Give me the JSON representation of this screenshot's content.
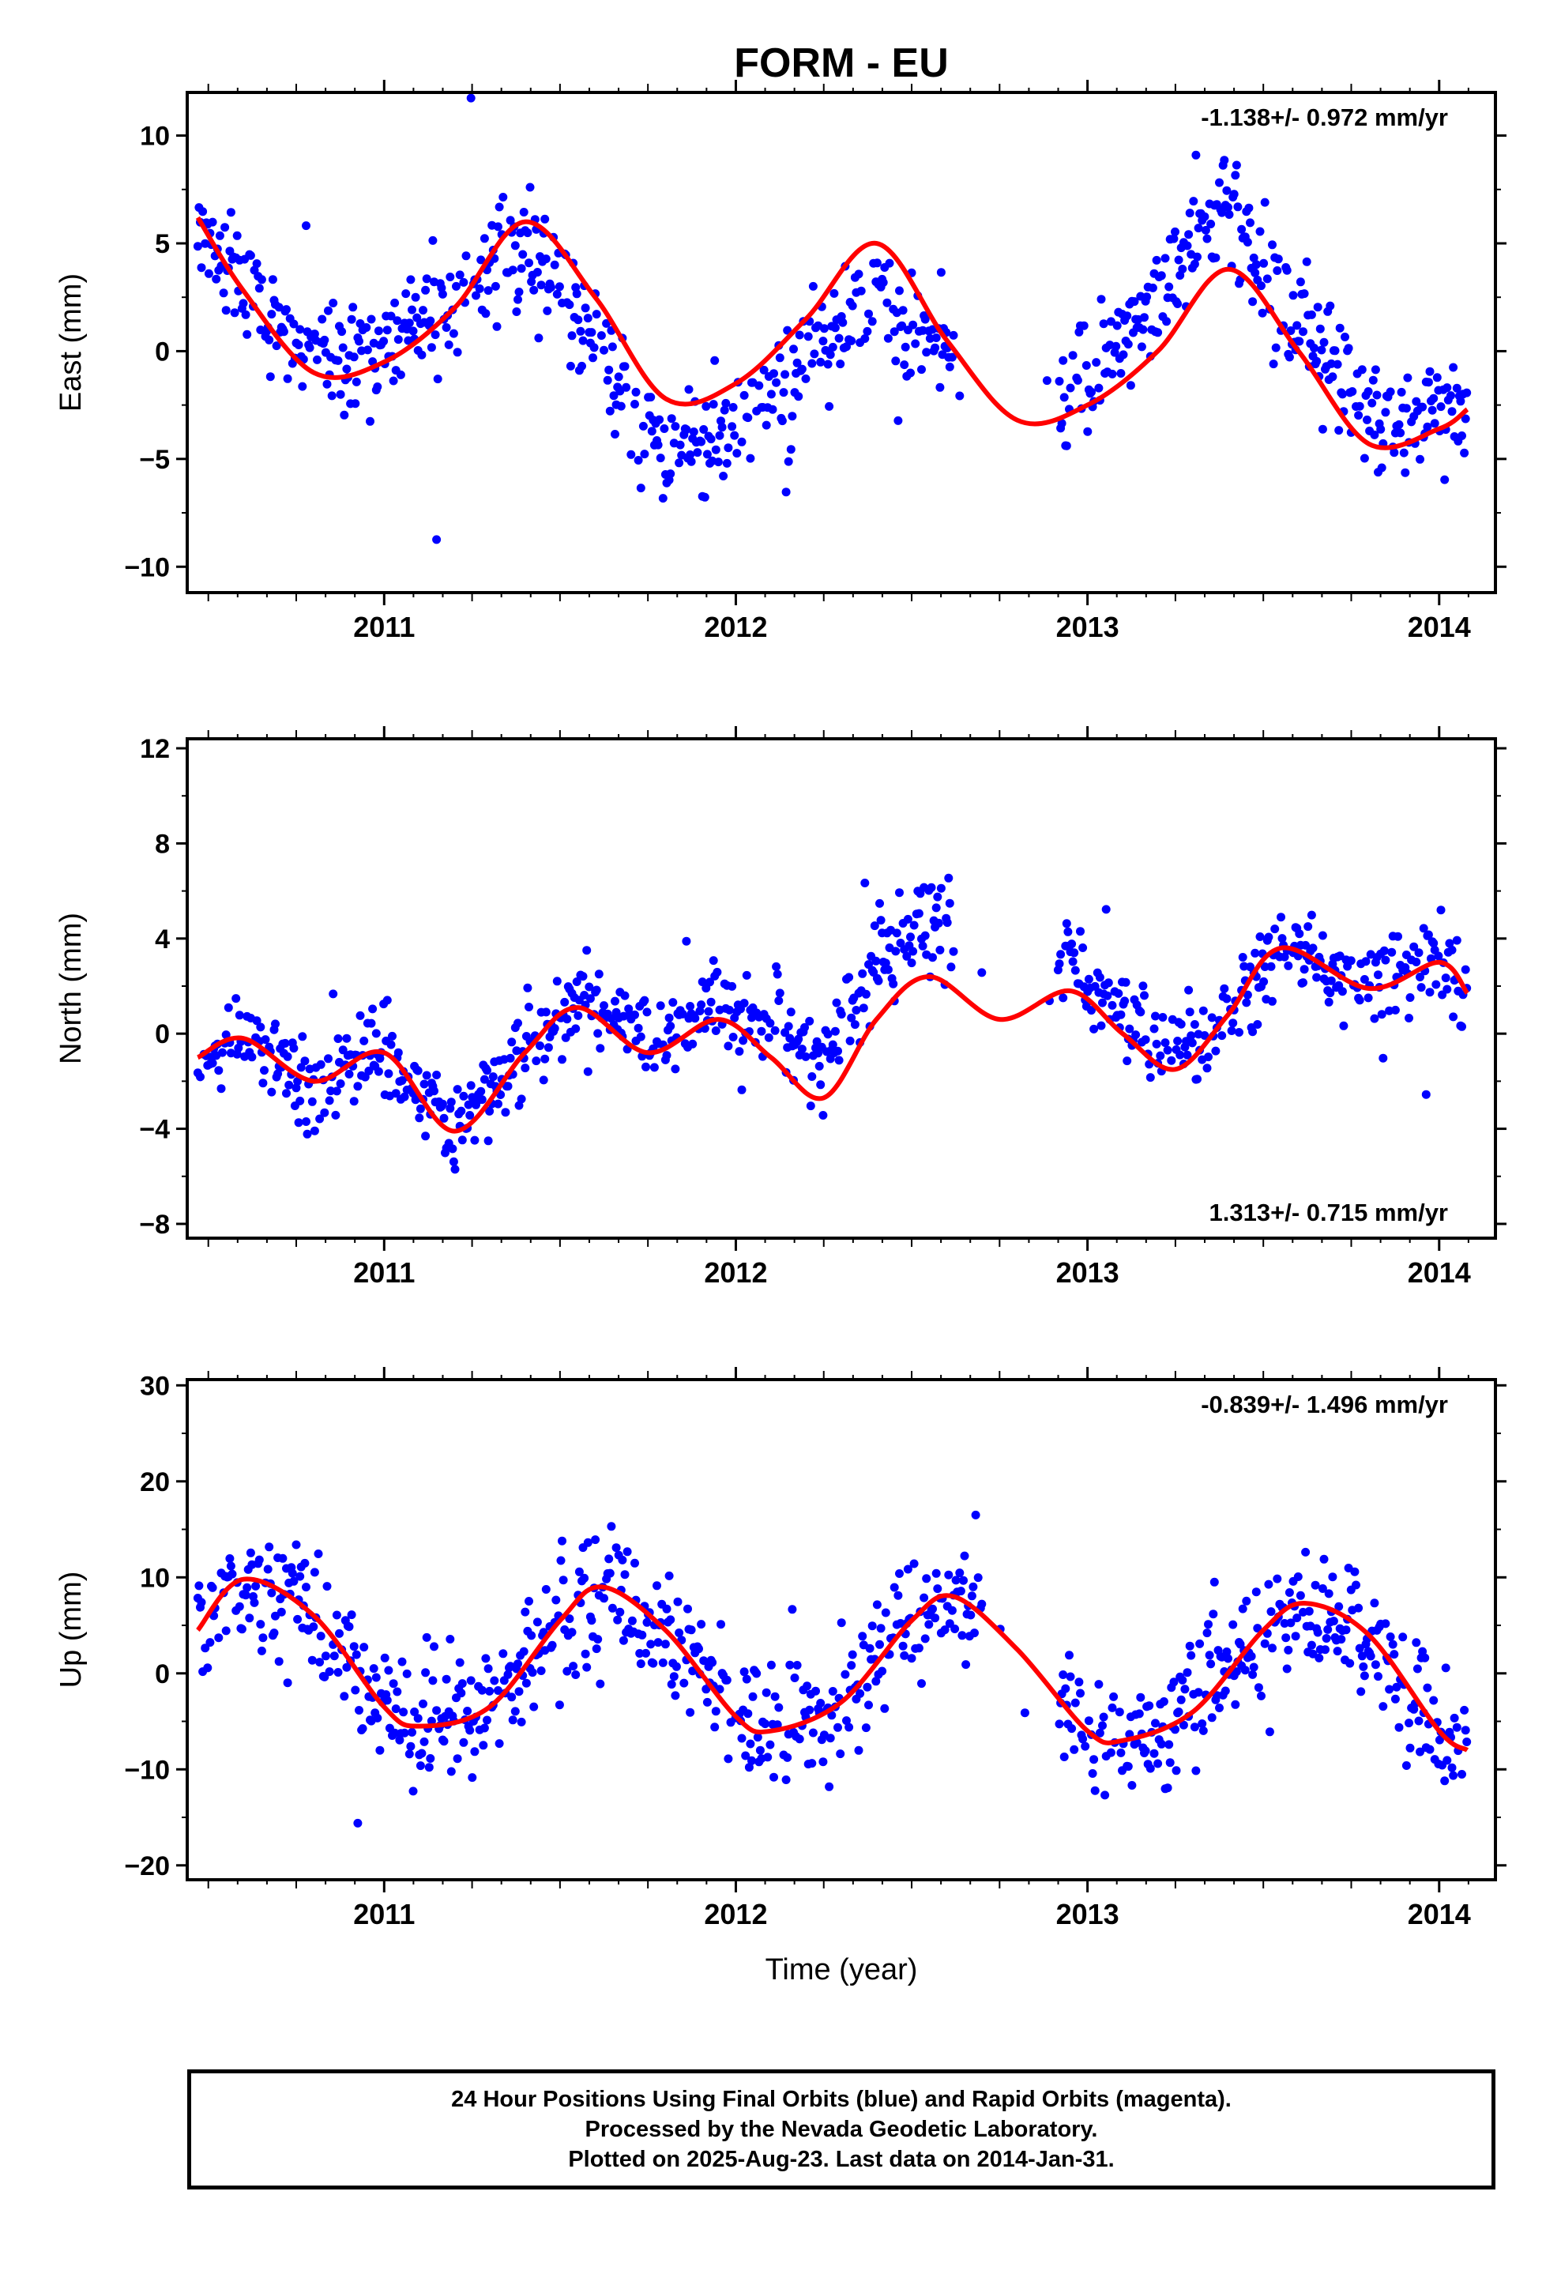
{
  "chart_data": [
    {
      "type": "scatter",
      "title": "FORM - EU",
      "ylabel": "East (mm)",
      "xlim": [
        2010.44,
        2014.16
      ],
      "ylim": [
        -11.2,
        12.0
      ],
      "yticks": [
        -10,
        -5,
        0,
        5,
        10
      ],
      "ytick_labels": [
        "−10",
        "−5",
        "0",
        "5",
        "10"
      ],
      "xticks": [
        2011,
        2012,
        2013,
        2014
      ],
      "xtick_labels": [
        "2011",
        "2012",
        "2013",
        "2014"
      ],
      "annotation": "-1.138+/- 0.972 mm/yr",
      "annotation_position": "top-right",
      "series": [
        {
          "kind": "points",
          "color": "#0000ff"
        },
        {
          "kind": "fit",
          "color": "#ff0000",
          "x": [
            2010.47,
            2010.6,
            2010.8,
            2011.0,
            2011.2,
            2011.4,
            2011.6,
            2011.8,
            2012.0,
            2012.2,
            2012.4,
            2012.6,
            2012.8,
            2013.0,
            2013.2,
            2013.4,
            2013.6,
            2013.8,
            2014.0,
            2014.08
          ],
          "y": [
            6.2,
            2.8,
            -1.0,
            -0.5,
            2.0,
            6.0,
            2.5,
            -2.2,
            -1.5,
            1.5,
            5.0,
            0.5,
            -3.2,
            -2.5,
            0.0,
            3.8,
            0.0,
            -4.3,
            -3.6,
            -2.7
          ]
        }
      ]
    },
    {
      "type": "scatter",
      "ylabel": "North (mm)",
      "xlim": [
        2010.44,
        2014.16
      ],
      "ylim": [
        -8.6,
        12.4
      ],
      "yticks": [
        -8,
        -4,
        0,
        4,
        8,
        12
      ],
      "ytick_labels": [
        "−8",
        "−4",
        "0",
        "4",
        "8",
        "12"
      ],
      "xticks": [
        2011,
        2012,
        2013,
        2014
      ],
      "xtick_labels": [
        "2011",
        "2012",
        "2013",
        "2014"
      ],
      "annotation": "1.313+/- 0.715 mm/yr",
      "annotation_position": "bottom-right",
      "series": [
        {
          "kind": "points",
          "color": "#0000ff"
        },
        {
          "kind": "fit",
          "color": "#ff0000",
          "x": [
            2010.47,
            2010.6,
            2010.8,
            2011.0,
            2011.2,
            2011.4,
            2011.55,
            2011.75,
            2011.95,
            2012.1,
            2012.25,
            2012.4,
            2012.55,
            2012.75,
            2012.95,
            2013.1,
            2013.25,
            2013.4,
            2013.55,
            2013.8,
            2014.0,
            2014.08
          ],
          "y": [
            -1.0,
            -0.2,
            -2.0,
            -0.8,
            -4.1,
            -0.8,
            1.1,
            -0.8,
            0.6,
            -1.0,
            -2.7,
            0.6,
            2.4,
            0.6,
            1.8,
            0.0,
            -1.5,
            0.8,
            3.6,
            1.9,
            3.0,
            1.7
          ]
        }
      ]
    },
    {
      "type": "scatter",
      "ylabel": "Up (mm)",
      "xlabel": "Time (year)",
      "xlim": [
        2010.44,
        2014.16
      ],
      "ylim": [
        -21.5,
        30.6
      ],
      "yticks": [
        -20,
        -10,
        0,
        10,
        20,
        30
      ],
      "ytick_labels": [
        "−20",
        "−10",
        "0",
        "10",
        "20",
        "30"
      ],
      "xticks": [
        2011,
        2012,
        2013,
        2014
      ],
      "xtick_labels": [
        "2011",
        "2012",
        "2013",
        "2014"
      ],
      "annotation": "-0.839+/- 1.496 mm/yr",
      "annotation_position": "top-right",
      "series": [
        {
          "kind": "points",
          "color": "#0000ff"
        },
        {
          "kind": "fit",
          "color": "#ff0000",
          "x": [
            2010.47,
            2010.6,
            2010.8,
            2011.0,
            2011.1,
            2011.3,
            2011.5,
            2011.62,
            2011.8,
            2012.0,
            2012.1,
            2012.3,
            2012.5,
            2012.62,
            2012.8,
            2013.0,
            2013.1,
            2013.3,
            2013.5,
            2013.62,
            2013.8,
            2014.0,
            2014.08
          ],
          "y": [
            4.5,
            9.8,
            6.0,
            -3.5,
            -5.5,
            -3.5,
            5.5,
            9.0,
            4.5,
            -4.5,
            -6.0,
            -3.0,
            5.5,
            8.0,
            2.5,
            -6.0,
            -7.0,
            -4.0,
            4.5,
            7.3,
            4.0,
            -6.0,
            -8.0
          ]
        }
      ]
    }
  ],
  "footer": {
    "line1": "24 Hour Positions Using Final Orbits (blue) and Rapid Orbits (magenta).",
    "line2": "Processed by the Nevada Geodetic Laboratory.",
    "line3": "Plotted on 2025-Aug-23. Last data on 2014-Jan-31."
  }
}
